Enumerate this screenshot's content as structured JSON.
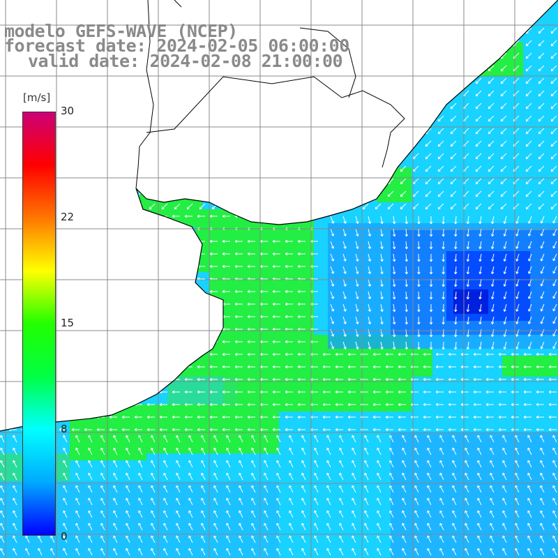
{
  "header": {
    "line1": "modelo GEFS-WAVE (NCEP)",
    "line2": "forecast date: 2024-02-05 06:00:00",
    "line3": "valid date: 2024-02-08 21:00:00"
  },
  "colorbar": {
    "unit": "[m/s]",
    "min": 0,
    "max": 30,
    "tick_labels": [
      "30",
      "22",
      "15",
      "8",
      "0"
    ],
    "tick_values": [
      30,
      22,
      15,
      8,
      0
    ],
    "colors": [
      "#0000ff",
      "#00aaff",
      "#00ffff",
      "#00ff44",
      "#22ff00",
      "#ffff00",
      "#ff7700",
      "#ff0000",
      "#cc0077"
    ]
  },
  "map": {
    "variable": "wind speed and direction",
    "land_color": "#ffffff",
    "grid_color": "#888888",
    "coastline_color": "#000000",
    "arrow_color": "#ffffff"
  }
}
